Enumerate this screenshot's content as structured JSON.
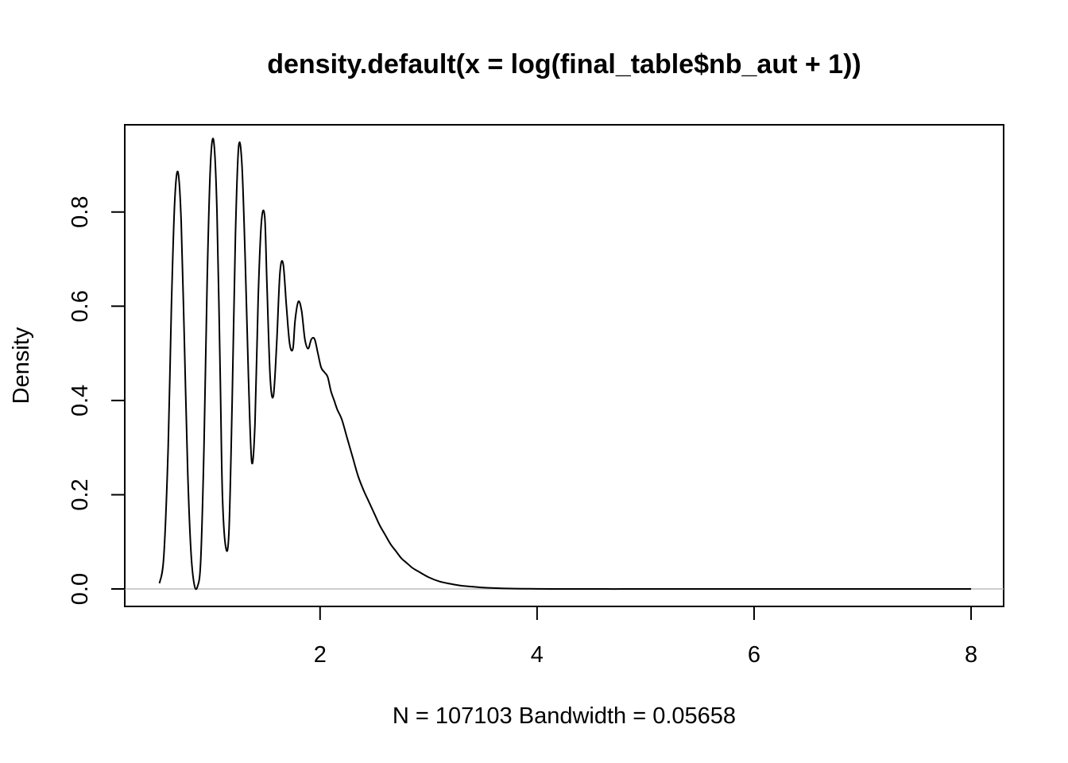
{
  "chart_data": {
    "type": "line",
    "title": "density.default(x = log(final_table$nb_aut + 1))",
    "xlabel": "N = 107103   Bandwidth = 0.05658",
    "ylabel": "Density",
    "xlim": [
      0.2,
      8.3
    ],
    "ylim": [
      -0.037,
      0.985
    ],
    "x_ticks": [
      2,
      4,
      6,
      8
    ],
    "x_tick_labels": [
      "2",
      "4",
      "6",
      "8"
    ],
    "y_ticks": [
      0.0,
      0.2,
      0.4,
      0.6,
      0.8
    ],
    "y_tick_labels": [
      "0.0",
      "0.2",
      "0.4",
      "0.6",
      "0.8"
    ],
    "zero_line": true,
    "grid": false,
    "legend": "none",
    "series": [
      {
        "color": "#000000",
        "x": [
          0.52,
          0.56,
          0.6,
          0.63,
          0.66,
          0.69,
          0.72,
          0.75,
          0.78,
          0.81,
          0.84,
          0.87,
          0.9,
          0.93,
          0.96,
          0.99,
          1.02,
          1.05,
          1.08,
          1.1,
          1.13,
          1.16,
          1.19,
          1.22,
          1.25,
          1.28,
          1.31,
          1.34,
          1.37,
          1.4,
          1.43,
          1.46,
          1.49,
          1.51,
          1.54,
          1.57,
          1.6,
          1.63,
          1.66,
          1.69,
          1.72,
          1.75,
          1.77,
          1.8,
          1.83,
          1.86,
          1.89,
          1.92,
          1.95,
          1.98,
          2.01,
          2.04,
          2.07,
          2.1,
          2.13,
          2.16,
          2.2,
          2.25,
          2.3,
          2.35,
          2.4,
          2.45,
          2.5,
          2.55,
          2.6,
          2.65,
          2.7,
          2.75,
          2.8,
          2.85,
          2.9,
          3.0,
          3.1,
          3.2,
          3.3,
          3.4,
          3.5,
          3.6,
          3.7,
          3.8,
          3.9,
          4.0,
          4.2,
          4.4,
          4.6,
          4.8,
          5.0,
          5.5,
          6.0,
          6.5,
          7.0,
          7.5,
          8.0
        ],
        "y": [
          0.012,
          0.07,
          0.3,
          0.6,
          0.82,
          0.885,
          0.78,
          0.52,
          0.25,
          0.08,
          0.01,
          0.005,
          0.06,
          0.3,
          0.66,
          0.9,
          0.95,
          0.8,
          0.45,
          0.2,
          0.09,
          0.12,
          0.4,
          0.75,
          0.94,
          0.9,
          0.7,
          0.45,
          0.27,
          0.35,
          0.62,
          0.78,
          0.79,
          0.65,
          0.45,
          0.41,
          0.52,
          0.67,
          0.69,
          0.6,
          0.52,
          0.51,
          0.57,
          0.61,
          0.59,
          0.53,
          0.51,
          0.53,
          0.53,
          0.5,
          0.47,
          0.46,
          0.45,
          0.42,
          0.4,
          0.38,
          0.36,
          0.32,
          0.28,
          0.24,
          0.21,
          0.185,
          0.16,
          0.135,
          0.115,
          0.095,
          0.08,
          0.065,
          0.055,
          0.045,
          0.038,
          0.025,
          0.016,
          0.011,
          0.007,
          0.005,
          0.003,
          0.002,
          0.0012,
          0.0008,
          0.0005,
          0.0003,
          0.0001,
          5e-05,
          0.0,
          0.0,
          0.0,
          0.0,
          0.0,
          0.0,
          0.0,
          0.0,
          0.0
        ]
      }
    ]
  }
}
